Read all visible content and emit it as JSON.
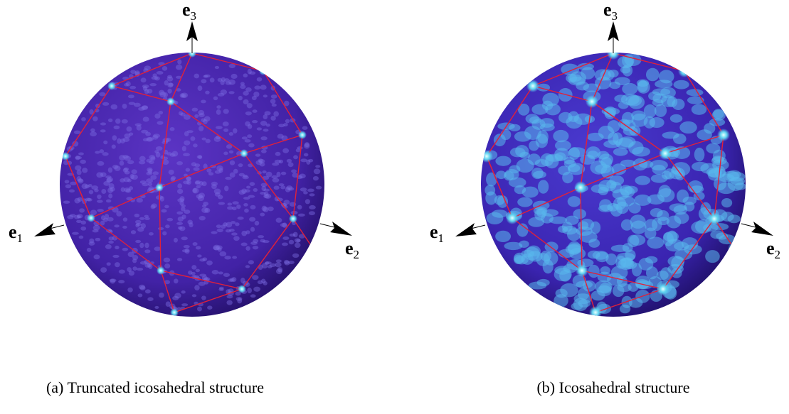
{
  "figure": {
    "panels": [
      {
        "axes": {
          "e3": {
            "base": "e",
            "sub": "3"
          },
          "e1": {
            "base": "e",
            "sub": "1"
          },
          "e2": {
            "base": "e",
            "sub": "2"
          }
        },
        "caption": "(a) Truncated icosahedral structure"
      },
      {
        "axes": {
          "e3": {
            "base": "e",
            "sub": "3"
          },
          "e1": {
            "base": "e",
            "sub": "1"
          },
          "e2": {
            "base": "e",
            "sub": "2"
          }
        },
        "caption": "(b) Icosahedral structure"
      }
    ]
  }
}
